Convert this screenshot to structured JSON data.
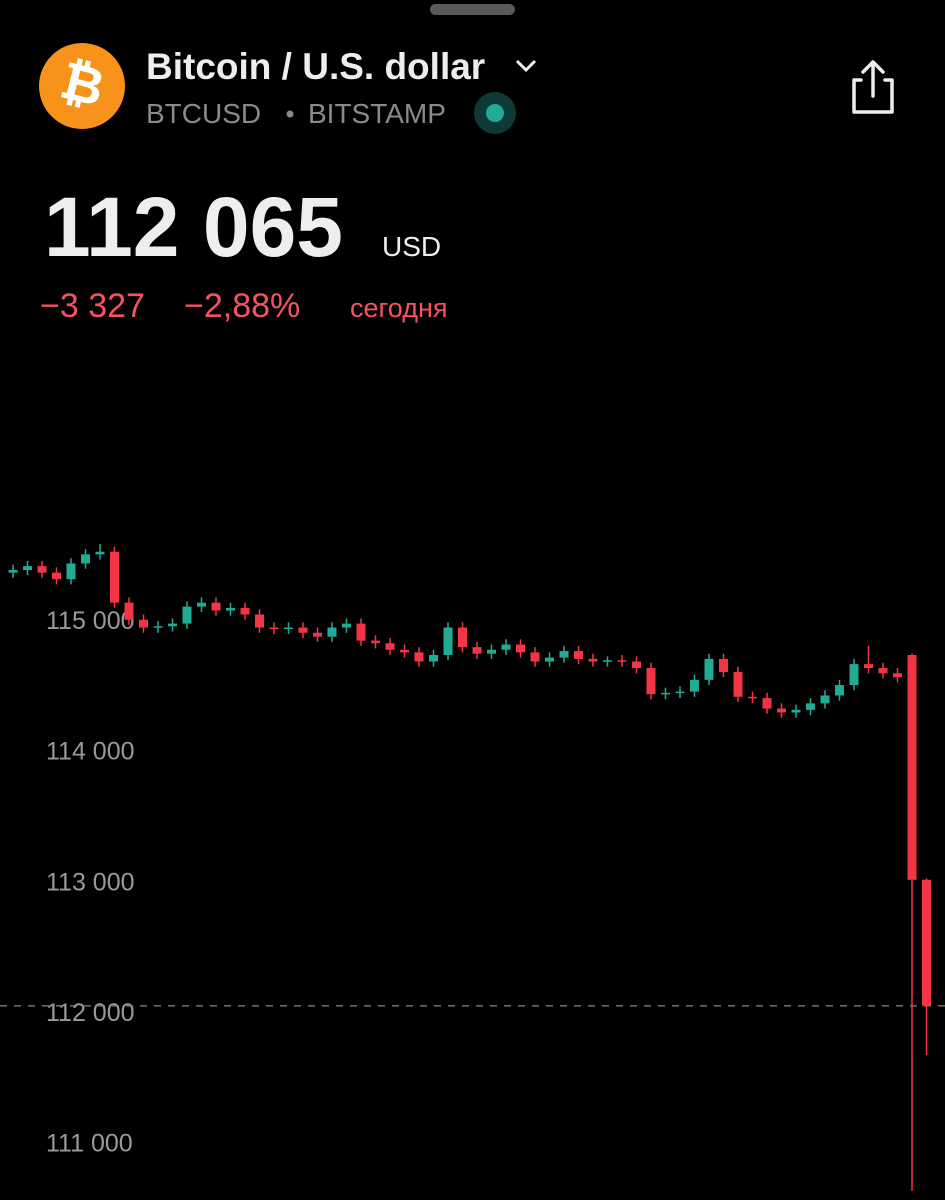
{
  "header": {
    "title": "Bitcoin / U.S. dollar",
    "symbol": "BTCUSD",
    "exchange": "BITSTAMP"
  },
  "quote": {
    "price": "112 065",
    "currency": "USD",
    "change": "−3 327",
    "change_percent": "−2,88%",
    "period": "сегодня"
  },
  "chart_data": {
    "type": "candlestick",
    "ylim": [
      110580,
      117160
    ],
    "yticks": [
      {
        "value": 111000,
        "label": "111 000"
      },
      {
        "value": 112000,
        "label": "112 000"
      },
      {
        "value": 113000,
        "label": "113 000"
      },
      {
        "value": 114000,
        "label": "114 000"
      },
      {
        "value": 115000,
        "label": "115 000"
      }
    ],
    "up_color": "#22ab94",
    "down_color": "#f23645",
    "open": [
      115380,
      115400,
      115430,
      115380,
      115330,
      115450,
      115520,
      115540,
      115150,
      115020,
      114960,
      114970,
      114990,
      115120,
      115150,
      115090,
      115110,
      115060,
      114960,
      114950,
      114960,
      114920,
      114890,
      114960,
      114990,
      114860,
      114840,
      114790,
      114770,
      114700,
      114750,
      114960,
      114810,
      114760,
      114790,
      114830,
      114770,
      114700,
      114730,
      114780,
      114720,
      114700,
      114710,
      114700,
      114650,
      114450,
      114460,
      114470,
      114560,
      114720,
      114620,
      114430,
      114420,
      114340,
      114310,
      114330,
      114380,
      114440,
      114520,
      114680,
      114650,
      114610,
      114750,
      113030
    ],
    "high": [
      115440,
      115470,
      115470,
      115420,
      115490,
      115560,
      115600,
      115580,
      115190,
      115060,
      115010,
      115030,
      115160,
      115190,
      115190,
      115150,
      115150,
      115100,
      115000,
      115000,
      115000,
      114960,
      115000,
      115030,
      115030,
      114900,
      114880,
      114830,
      114810,
      114790,
      115000,
      115000,
      114850,
      114830,
      114870,
      114870,
      114810,
      114770,
      114820,
      114820,
      114760,
      114740,
      114750,
      114740,
      114690,
      114500,
      114510,
      114600,
      114760,
      114760,
      114660,
      114470,
      114460,
      114380,
      114370,
      114420,
      114480,
      114560,
      114720,
      114820,
      114690,
      114650,
      114760,
      113040
    ],
    "low": [
      115340,
      115360,
      115340,
      115290,
      115290,
      115410,
      115480,
      115110,
      114980,
      114920,
      114920,
      114930,
      114950,
      115080,
      115050,
      115050,
      115020,
      114920,
      114910,
      114910,
      114880,
      114850,
      114850,
      114920,
      114820,
      114800,
      114750,
      114730,
      114660,
      114660,
      114710,
      114770,
      114720,
      114720,
      114750,
      114730,
      114660,
      114660,
      114690,
      114680,
      114660,
      114660,
      114660,
      114610,
      114410,
      114410,
      114420,
      114430,
      114520,
      114580,
      114390,
      114380,
      114300,
      114270,
      114270,
      114290,
      114340,
      114400,
      114480,
      114610,
      114570,
      114540,
      110650,
      111690
    ],
    "close": [
      115400,
      115430,
      115380,
      115330,
      115450,
      115520,
      115540,
      115150,
      115020,
      114960,
      114970,
      114990,
      115120,
      115150,
      115090,
      115110,
      115060,
      114960,
      114950,
      114960,
      114920,
      114890,
      114960,
      114990,
      114860,
      114840,
      114790,
      114770,
      114700,
      114750,
      114960,
      114810,
      114760,
      114790,
      114830,
      114770,
      114700,
      114730,
      114780,
      114720,
      114700,
      114710,
      114700,
      114650,
      114450,
      114460,
      114470,
      114560,
      114720,
      114620,
      114430,
      114420,
      114340,
      114310,
      114330,
      114380,
      114440,
      114520,
      114680,
      114650,
      114610,
      114580,
      113030,
      112065
    ]
  }
}
